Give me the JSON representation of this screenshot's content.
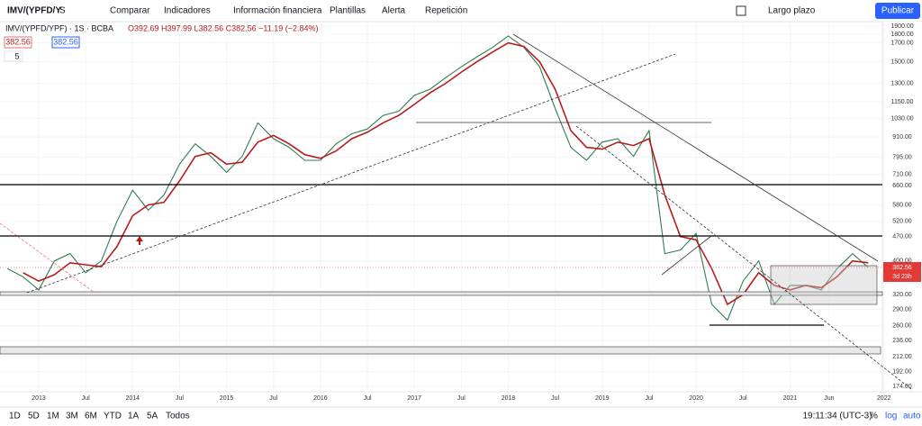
{
  "toolbar": {
    "symbol": "IMV/(YPFD/Y",
    "interval": "S",
    "buttons": [
      "Comparar",
      "Indicadores",
      "Información financiera",
      "Plantillas",
      "Alerta",
      "Repetición"
    ],
    "layout": "Largo plazo",
    "publish": "Publicar"
  },
  "legend": {
    "title": "IMV/(YPFD/YPF) · 1S · BCBA",
    "ohlc": "O392.69 H397.99 L382.56 C382.56 −11.19 (−2.84%)",
    "boxes": [
      "382.56",
      "382.56"
    ],
    "ma_length": "5"
  },
  "chart_data": {
    "type": "line",
    "log_scale": true,
    "grid": true,
    "x": [
      "2012-09",
      "2012-11",
      "2013-01",
      "2013-03",
      "2013-05",
      "2013-07",
      "2013-09",
      "2013-11",
      "2014-01",
      "2014-03",
      "2014-05",
      "2014-07",
      "2014-09",
      "2014-11",
      "2015-01",
      "2015-03",
      "2015-05",
      "2015-07",
      "2015-09",
      "2015-11",
      "2016-01",
      "2016-03",
      "2016-05",
      "2016-07",
      "2016-09",
      "2016-11",
      "2017-01",
      "2017-03",
      "2017-05",
      "2017-07",
      "2017-09",
      "2017-11",
      "2018-01",
      "2018-03",
      "2018-05",
      "2018-07",
      "2018-09",
      "2018-11",
      "2019-01",
      "2019-03",
      "2019-05",
      "2019-07",
      "2019-09",
      "2019-11",
      "2020-01",
      "2020-03",
      "2020-05",
      "2020-07",
      "2020-09",
      "2020-11",
      "2021-01",
      "2021-03",
      "2021-05",
      "2021-07",
      "2021-09",
      "2021-11"
    ],
    "series": [
      {
        "name": "IMV/(YPFD/YPF)",
        "color": "#2e7d4f",
        "values": [
          380,
          360,
          330,
          400,
          420,
          370,
          400,
          520,
          640,
          560,
          620,
          760,
          870,
          800,
          720,
          800,
          1000,
          900,
          850,
          780,
          780,
          870,
          930,
          960,
          1050,
          1080,
          1200,
          1250,
          1350,
          1450,
          1550,
          1650,
          1780,
          1650,
          1450,
          1100,
          850,
          780,
          880,
          900,
          800,
          950,
          420,
          430,
          480,
          300,
          270,
          350,
          400,
          300,
          340,
          340,
          330,
          380,
          420,
          383
        ]
      },
      {
        "color": "#b71c1c",
        "values": [
          null,
          370,
          350,
          365,
          395,
          390,
          385,
          440,
          540,
          580,
          590,
          680,
          800,
          820,
          760,
          770,
          880,
          920,
          870,
          810,
          790,
          830,
          900,
          940,
          1000,
          1050,
          1130,
          1220,
          1300,
          1400,
          1500,
          1600,
          1700,
          1660,
          1500,
          1250,
          950,
          850,
          840,
          880,
          860,
          900,
          620,
          470,
          460,
          380,
          300,
          320,
          370,
          340,
          330,
          340,
          335,
          360,
          400,
          395
        ]
      }
    ],
    "ylim": [
      174,
      1900
    ],
    "yticks": [
      {
        "value": 1900,
        "label": "1900.00"
      },
      {
        "value": 1800,
        "label": "1800.00"
      },
      {
        "value": 1700,
        "label": "1700.00"
      },
      {
        "value": 1500,
        "label": "1500.00"
      },
      {
        "value": 1300,
        "label": "1300.00"
      },
      {
        "value": 1150,
        "label": "1150.00"
      },
      {
        "value": 1030,
        "label": "1030.00"
      },
      {
        "value": 910,
        "label": "910.00"
      },
      {
        "value": 795,
        "label": "795.00"
      },
      {
        "value": 710,
        "label": "710.00"
      },
      {
        "value": 660,
        "label": "660.00"
      },
      {
        "value": 580,
        "label": "580.00"
      },
      {
        "value": 520,
        "label": "520.00"
      },
      {
        "value": 470,
        "label": "470.00"
      },
      {
        "value": 400,
        "label": "400.00"
      },
      {
        "value": 320,
        "label": "320.00"
      },
      {
        "value": 290,
        "label": "290.00"
      },
      {
        "value": 260,
        "label": "260.00"
      },
      {
        "value": 236,
        "label": "236.00"
      },
      {
        "value": 212,
        "label": "212.00"
      },
      {
        "value": 192,
        "label": "192.00"
      },
      {
        "value": 174,
        "label": "174.00"
      }
    ],
    "xticks": [
      {
        "value": "2013-01",
        "label": "2013"
      },
      {
        "value": "2013-07",
        "label": "Jul"
      },
      {
        "value": "2014-01",
        "label": "2014"
      },
      {
        "value": "2014-07",
        "label": "Jul"
      },
      {
        "value": "2015-01",
        "label": "2015"
      },
      {
        "value": "2015-07",
        "label": "Jul"
      },
      {
        "value": "2016-01",
        "label": "2016"
      },
      {
        "value": "2016-07",
        "label": "Jul"
      },
      {
        "value": "2017-01",
        "label": "2017"
      },
      {
        "value": "2017-07",
        "label": "Jul"
      },
      {
        "value": "2018-01",
        "label": "2018"
      },
      {
        "value": "2018-07",
        "label": "Jul"
      },
      {
        "value": "2019-01",
        "label": "2019"
      },
      {
        "value": "2019-07",
        "label": "Jul"
      },
      {
        "value": "2020-01",
        "label": "2020"
      },
      {
        "value": "2020-07",
        "label": "Jul"
      },
      {
        "value": "2021-01",
        "label": "2021"
      },
      {
        "value": "2021-06",
        "label": "Jun"
      },
      {
        "value": "2022-01",
        "label": "2022"
      }
    ]
  },
  "last_price": {
    "value": "382.56",
    "countdown": "3d 23h"
  },
  "bottom": {
    "ranges": [
      "1D",
      "5D",
      "1M",
      "3M",
      "6M",
      "YTD",
      "1A",
      "5A",
      "Todos"
    ],
    "time": "19:11:34 (UTC-3)",
    "options": [
      "%",
      "log",
      "auto"
    ]
  }
}
